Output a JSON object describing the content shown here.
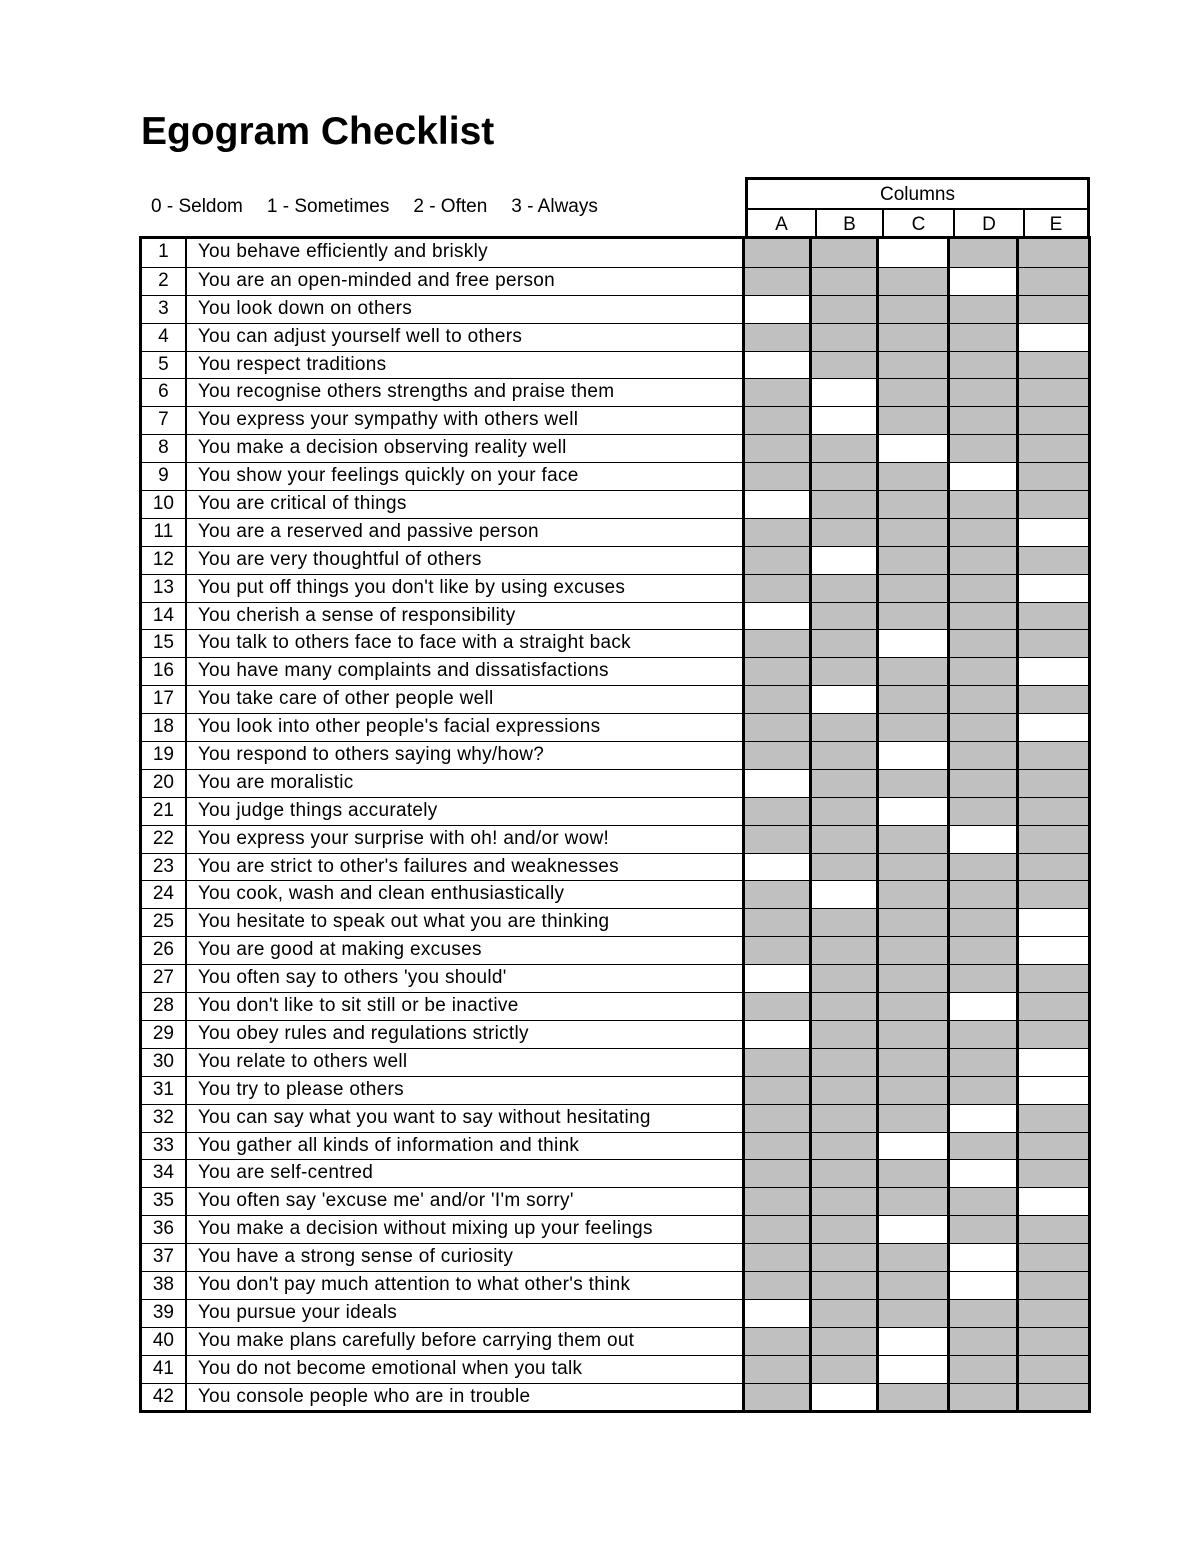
{
  "title": "Egogram Checklist",
  "scale": [
    "0 - Seldom",
    "1 - Sometimes",
    "2 - Often",
    "3 - Always"
  ],
  "columns_label": "Columns",
  "columns": [
    "A",
    "B",
    "C",
    "D",
    "E"
  ],
  "colors": {
    "shaded": "#c0c0c0",
    "open": "#ffffff"
  },
  "items": [
    {
      "n": "1",
      "text": "You behave efficiently and briskly",
      "open": "C"
    },
    {
      "n": "2",
      "text": "You are an open-minded and free person",
      "open": "D"
    },
    {
      "n": "3",
      "text": "You look down on others",
      "open": "A"
    },
    {
      "n": "4",
      "text": "You can adjust yourself well to others",
      "open": "E"
    },
    {
      "n": "5",
      "text": "You respect traditions",
      "open": "A"
    },
    {
      "n": "6",
      "text": "You recognise others strengths and praise them",
      "open": "B"
    },
    {
      "n": "7",
      "text": "You express your sympathy with others well",
      "open": "B"
    },
    {
      "n": "8",
      "text": "You make a decision observing reality well",
      "open": "C"
    },
    {
      "n": "9",
      "text": "You show your feelings quickly on your face",
      "open": "D"
    },
    {
      "n": "10",
      "text": "You are critical of things",
      "open": "A"
    },
    {
      "n": "11",
      "text": "You are a reserved and passive person",
      "open": "E"
    },
    {
      "n": "12",
      "text": "You are very thoughtful of others",
      "open": "B"
    },
    {
      "n": "13",
      "text": "You put off things you don't like by using excuses",
      "open": "E"
    },
    {
      "n": "14",
      "text": "You cherish a sense of responsibility",
      "open": "A"
    },
    {
      "n": "15",
      "text": "You talk to others face to face with a straight back",
      "open": "C"
    },
    {
      "n": "16",
      "text": "You have many complaints and dissatisfactions",
      "open": "E"
    },
    {
      "n": "17",
      "text": "You take care of other people well",
      "open": "B"
    },
    {
      "n": "18",
      "text": "You look into other people's facial expressions",
      "open": "E"
    },
    {
      "n": "19",
      "text": "You respond to others saying why/how?",
      "open": "C"
    },
    {
      "n": "20",
      "text": "You are moralistic",
      "open": "A"
    },
    {
      "n": "21",
      "text": "You judge things accurately",
      "open": "C"
    },
    {
      "n": "22",
      "text": "You express your surprise with oh! and/or wow!",
      "open": "D"
    },
    {
      "n": "23",
      "text": "You are strict to other's failures and weaknesses",
      "open": "A"
    },
    {
      "n": "24",
      "text": "You cook, wash and clean enthusiastically",
      "open": "B"
    },
    {
      "n": "25",
      "text": "You hesitate to speak out what you are thinking",
      "open": "E"
    },
    {
      "n": "26",
      "text": "You are good at making excuses",
      "open": "E"
    },
    {
      "n": "27",
      "text": "You often say to others 'you should'",
      "open": "A"
    },
    {
      "n": "28",
      "text": "You don't like to sit still or be inactive",
      "open": "D"
    },
    {
      "n": "29",
      "text": "You obey rules and regulations strictly",
      "open": "A"
    },
    {
      "n": "30",
      "text": "You relate to others well",
      "open": "E"
    },
    {
      "n": "31",
      "text": "You try to please others",
      "open": "E"
    },
    {
      "n": "32",
      "text": "You can say what you want to say without hesitating",
      "open": "D"
    },
    {
      "n": "33",
      "text": "You gather all kinds of information and think",
      "open": "C"
    },
    {
      "n": "34",
      "text": "You are self-centred",
      "open": "D"
    },
    {
      "n": "35",
      "text": "You often say 'excuse me' and/or 'I'm sorry'",
      "open": "E"
    },
    {
      "n": "36",
      "text": "You make a decision without mixing up your feelings",
      "open": "C"
    },
    {
      "n": "37",
      "text": "You have a strong sense of curiosity",
      "open": "D"
    },
    {
      "n": "38",
      "text": "You don't pay much attention to what other's think",
      "open": "D"
    },
    {
      "n": "39",
      "text": "You pursue your ideals",
      "open": "A"
    },
    {
      "n": "40",
      "text": "You make plans carefully before carrying them out",
      "open": "C"
    },
    {
      "n": "41",
      "text": "You do not become emotional when you talk",
      "open": "C"
    },
    {
      "n": "42",
      "text": "You console people who are in trouble",
      "open": "B"
    }
  ]
}
